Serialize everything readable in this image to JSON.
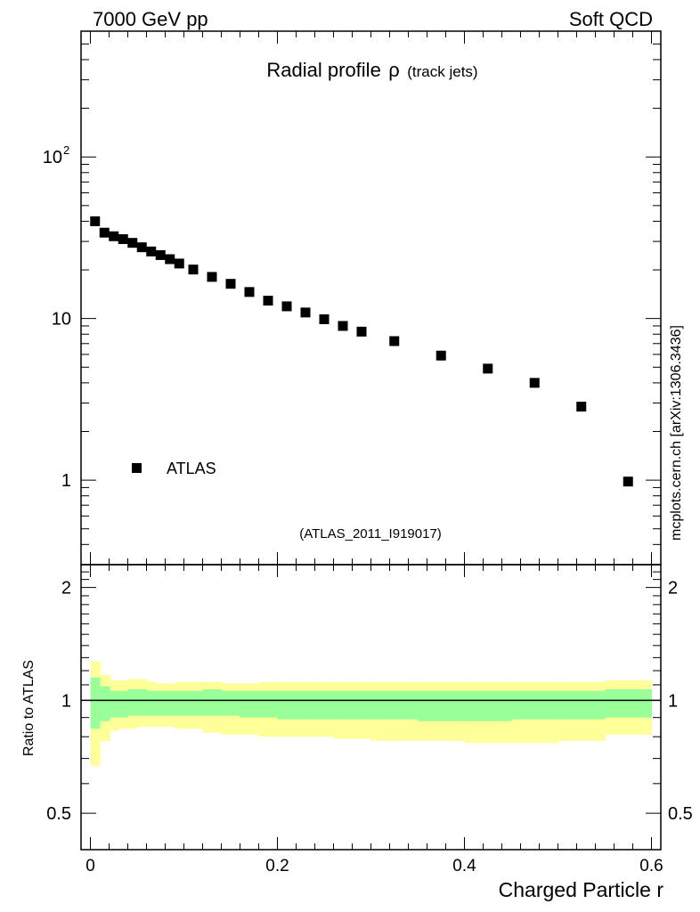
{
  "header": {
    "left": "7000 GeV pp",
    "right": "Soft QCD"
  },
  "side_label": "mcplots.cern.ch [arXiv:1306.3436]",
  "chart_data": [
    {
      "type": "scatter",
      "title_main": "Radial profile",
      "title_symbol": "ρ",
      "title_note": "(track jets)",
      "analysis_label": "(ATLAS_2011_I919017)",
      "y_scale": "log",
      "xlim": [
        -0.01,
        0.61
      ],
      "ylim": [
        0.3,
        600
      ],
      "y_ticks": [
        {
          "value": 1,
          "label": "1"
        },
        {
          "value": 10,
          "label": "10"
        },
        {
          "value": 100,
          "label": "10",
          "sup": "2"
        }
      ],
      "legend": {
        "label": "ATLAS",
        "placement": "bottom-left"
      },
      "series": [
        {
          "name": "ATLAS",
          "color": "#000000",
          "x": [
            0.005,
            0.015,
            0.025,
            0.035,
            0.045,
            0.055,
            0.065,
            0.075,
            0.085,
            0.095,
            0.11,
            0.13,
            0.15,
            0.17,
            0.19,
            0.21,
            0.23,
            0.25,
            0.27,
            0.29,
            0.325,
            0.375,
            0.425,
            0.475,
            0.525,
            0.575
          ],
          "y": [
            40,
            34,
            32.3,
            31,
            29.4,
            27.6,
            26,
            24.7,
            23.3,
            21.9,
            20.1,
            18.1,
            16.4,
            14.6,
            12.9,
            11.9,
            10.9,
            9.9,
            9.0,
            8.3,
            7.25,
            5.9,
            4.9,
            4.0,
            2.85,
            0.98
          ]
        }
      ]
    },
    {
      "type": "area",
      "ylabel": "Ratio to ATLAS",
      "xlabel": "Charged Particle r",
      "xlim": [
        -0.01,
        0.61
      ],
      "ylim": [
        0.4,
        2.3
      ],
      "y_scale": "log",
      "x_ticks": [
        {
          "value": 0,
          "label": "0"
        },
        {
          "value": 0.2,
          "label": "0.2"
        },
        {
          "value": 0.4,
          "label": "0.4"
        },
        {
          "value": 0.6,
          "label": "0.6"
        }
      ],
      "y_ticks": [
        {
          "value": 0.5,
          "label": "0.5"
        },
        {
          "value": 1,
          "label": "1"
        },
        {
          "value": 2,
          "label": "2"
        }
      ],
      "reference_line": 1,
      "bin_edges": [
        0,
        0.01,
        0.02,
        0.03,
        0.04,
        0.05,
        0.06,
        0.07,
        0.08,
        0.09,
        0.1,
        0.12,
        0.14,
        0.16,
        0.18,
        0.2,
        0.22,
        0.24,
        0.26,
        0.28,
        0.3,
        0.35,
        0.4,
        0.45,
        0.5,
        0.55,
        0.6
      ],
      "bands": [
        {
          "name": "total uncertainty",
          "color": "#ffff99",
          "lo": [
            0.67,
            0.78,
            0.83,
            0.84,
            0.84,
            0.85,
            0.85,
            0.85,
            0.85,
            0.84,
            0.84,
            0.82,
            0.81,
            0.81,
            0.8,
            0.8,
            0.8,
            0.8,
            0.79,
            0.79,
            0.78,
            0.78,
            0.77,
            0.77,
            0.78,
            0.81
          ],
          "hi": [
            1.27,
            1.17,
            1.13,
            1.13,
            1.14,
            1.14,
            1.12,
            1.11,
            1.11,
            1.12,
            1.12,
            1.12,
            1.11,
            1.11,
            1.12,
            1.12,
            1.12,
            1.12,
            1.12,
            1.12,
            1.12,
            1.12,
            1.12,
            1.12,
            1.12,
            1.13
          ]
        },
        {
          "name": "statistical uncertainty",
          "color": "#99ff99",
          "lo": [
            0.84,
            0.88,
            0.9,
            0.9,
            0.91,
            0.91,
            0.91,
            0.91,
            0.91,
            0.91,
            0.91,
            0.91,
            0.91,
            0.9,
            0.9,
            0.89,
            0.89,
            0.89,
            0.89,
            0.89,
            0.89,
            0.88,
            0.88,
            0.89,
            0.89,
            0.9
          ],
          "hi": [
            1.15,
            1.09,
            1.06,
            1.06,
            1.07,
            1.07,
            1.06,
            1.06,
            1.06,
            1.06,
            1.06,
            1.07,
            1.06,
            1.06,
            1.06,
            1.06,
            1.06,
            1.06,
            1.06,
            1.06,
            1.06,
            1.06,
            1.06,
            1.06,
            1.06,
            1.07
          ]
        }
      ]
    }
  ]
}
